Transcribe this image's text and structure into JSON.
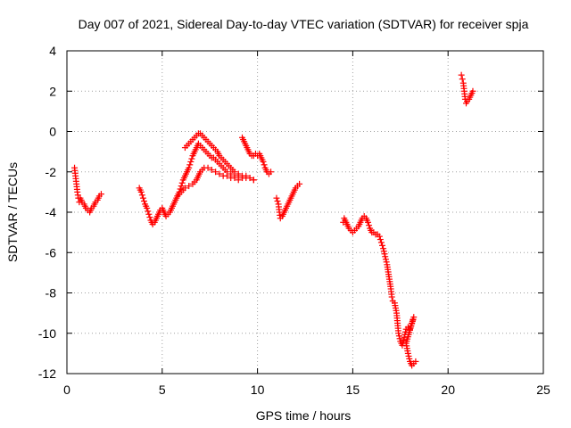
{
  "chart_data": {
    "type": "scatter",
    "title": "Day 007 of 2021, Sidereal Day-to-day VTEC variation (SDTVAR) for receiver spja",
    "xlabel": "GPS time / hours",
    "ylabel": "SDTVAR / TECUs",
    "xlim": [
      0,
      25
    ],
    "ylim": [
      -12,
      4
    ],
    "xticks": [
      "0",
      "5",
      "10",
      "15",
      "20",
      "25"
    ],
    "yticks": [
      "4",
      "2",
      "0",
      "-2",
      "-4",
      "-6",
      "-8",
      "-10",
      "-12"
    ],
    "grid": true,
    "marker": "+",
    "color": "#ff0000",
    "segments": [
      [
        [
          0.4,
          -1.8
        ],
        [
          0.45,
          -2.2
        ],
        [
          0.5,
          -2.6
        ],
        [
          0.55,
          -3.0
        ],
        [
          0.6,
          -3.3
        ],
        [
          0.65,
          -3.5
        ],
        [
          0.7,
          -3.3
        ],
        [
          0.8,
          -3.5
        ],
        [
          0.9,
          -3.6
        ],
        [
          1.0,
          -3.8
        ],
        [
          1.1,
          -3.9
        ],
        [
          1.2,
          -4.0
        ],
        [
          1.3,
          -3.8
        ],
        [
          1.4,
          -3.7
        ],
        [
          1.5,
          -3.5
        ],
        [
          1.6,
          -3.4
        ],
        [
          1.7,
          -3.2
        ],
        [
          1.8,
          -3.1
        ]
      ],
      [
        [
          3.8,
          -2.8
        ],
        [
          3.9,
          -3.0
        ],
        [
          4.0,
          -3.3
        ],
        [
          4.1,
          -3.6
        ],
        [
          4.2,
          -3.8
        ],
        [
          4.3,
          -4.1
        ],
        [
          4.4,
          -4.4
        ],
        [
          4.5,
          -4.6
        ],
        [
          4.6,
          -4.5
        ],
        [
          4.7,
          -4.3
        ],
        [
          4.8,
          -4.1
        ],
        [
          4.9,
          -3.9
        ],
        [
          5.0,
          -3.8
        ],
        [
          5.1,
          -4.0
        ],
        [
          5.2,
          -4.2
        ],
        [
          5.3,
          -4.1
        ],
        [
          5.4,
          -4.0
        ],
        [
          5.5,
          -3.8
        ],
        [
          5.6,
          -3.6
        ],
        [
          5.7,
          -3.4
        ],
        [
          5.8,
          -3.2
        ],
        [
          5.9,
          -3.0
        ],
        [
          6.0,
          -2.7
        ],
        [
          6.1,
          -2.4
        ],
        [
          6.2,
          -2.2
        ],
        [
          6.3,
          -2.0
        ],
        [
          6.4,
          -1.8
        ],
        [
          6.5,
          -1.5
        ],
        [
          6.6,
          -1.2
        ],
        [
          6.7,
          -1.0
        ],
        [
          6.8,
          -0.8
        ],
        [
          6.9,
          -0.6
        ],
        [
          7.0,
          -0.7
        ],
        [
          7.1,
          -0.8
        ],
        [
          7.2,
          -0.9
        ],
        [
          7.3,
          -1.0
        ],
        [
          7.4,
          -1.1
        ],
        [
          7.5,
          -1.2
        ],
        [
          7.6,
          -1.3
        ],
        [
          7.7,
          -1.3
        ],
        [
          7.8,
          -1.4
        ],
        [
          7.9,
          -1.5
        ],
        [
          8.0,
          -1.6
        ],
        [
          8.2,
          -1.8
        ],
        [
          8.4,
          -2.0
        ],
        [
          8.6,
          -2.1
        ],
        [
          8.8,
          -2.2
        ],
        [
          9.0,
          -2.2
        ],
        [
          9.2,
          -2.3
        ],
        [
          9.4,
          -2.3
        ],
        [
          9.6,
          -2.3
        ],
        [
          9.8,
          -2.4
        ]
      ],
      [
        [
          5.8,
          -3.2
        ],
        [
          6.0,
          -3.0
        ],
        [
          6.2,
          -2.8
        ],
        [
          6.4,
          -2.7
        ],
        [
          6.6,
          -2.6
        ],
        [
          6.8,
          -2.4
        ],
        [
          7.0,
          -2.0
        ],
        [
          7.2,
          -1.8
        ],
        [
          7.4,
          -1.8
        ],
        [
          7.6,
          -1.9
        ],
        [
          7.8,
          -2.0
        ],
        [
          8.0,
          -2.1
        ],
        [
          8.2,
          -2.2
        ],
        [
          8.4,
          -2.2
        ],
        [
          8.6,
          -2.3
        ],
        [
          8.8,
          -2.3
        ],
        [
          9.0,
          -2.4
        ],
        [
          9.2,
          -2.3
        ]
      ],
      [
        [
          6.2,
          -0.8
        ],
        [
          6.3,
          -0.7
        ],
        [
          6.4,
          -0.6
        ],
        [
          6.5,
          -0.5
        ],
        [
          6.6,
          -0.4
        ],
        [
          6.7,
          -0.3
        ],
        [
          6.8,
          -0.2
        ],
        [
          6.9,
          -0.1
        ],
        [
          7.0,
          -0.1
        ],
        [
          7.1,
          -0.2
        ],
        [
          7.2,
          -0.3
        ],
        [
          7.3,
          -0.4
        ],
        [
          7.4,
          -0.5
        ],
        [
          7.5,
          -0.6
        ],
        [
          7.6,
          -0.7
        ],
        [
          7.7,
          -0.8
        ],
        [
          7.8,
          -0.9
        ],
        [
          7.9,
          -1.0
        ],
        [
          8.0,
          -1.2
        ],
        [
          8.2,
          -1.4
        ],
        [
          8.4,
          -1.6
        ],
        [
          8.6,
          -1.8
        ],
        [
          8.8,
          -2.0
        ],
        [
          9.0,
          -2.1
        ],
        [
          9.2,
          -2.2
        ],
        [
          9.4,
          -2.2
        ],
        [
          9.6,
          -2.3
        ],
        [
          9.8,
          -2.4
        ]
      ],
      [
        [
          9.2,
          -0.3
        ],
        [
          9.3,
          -0.5
        ],
        [
          9.4,
          -0.7
        ],
        [
          9.5,
          -0.9
        ],
        [
          9.6,
          -1.1
        ],
        [
          9.7,
          -1.2
        ],
        [
          9.8,
          -1.2
        ],
        [
          9.9,
          -1.1
        ],
        [
          10.0,
          -1.2
        ],
        [
          10.1,
          -1.1
        ],
        [
          10.2,
          -1.3
        ],
        [
          10.3,
          -1.5
        ],
        [
          10.4,
          -1.8
        ],
        [
          10.5,
          -2.0
        ],
        [
          10.6,
          -2.1
        ],
        [
          10.7,
          -2.0
        ]
      ],
      [
        [
          11.0,
          -3.3
        ],
        [
          11.1,
          -3.6
        ],
        [
          11.15,
          -4.0
        ],
        [
          11.2,
          -4.3
        ],
        [
          11.3,
          -4.2
        ],
        [
          11.4,
          -4.0
        ],
        [
          11.5,
          -3.8
        ],
        [
          11.6,
          -3.6
        ],
        [
          11.7,
          -3.4
        ],
        [
          11.8,
          -3.2
        ],
        [
          11.9,
          -3.0
        ],
        [
          12.0,
          -2.8
        ],
        [
          12.1,
          -2.7
        ],
        [
          12.2,
          -2.6
        ]
      ],
      [
        [
          14.5,
          -4.5
        ],
        [
          14.55,
          -4.3
        ],
        [
          14.6,
          -4.4
        ],
        [
          14.7,
          -4.6
        ],
        [
          14.8,
          -4.8
        ],
        [
          14.9,
          -4.9
        ],
        [
          15.0,
          -5.0
        ],
        [
          15.1,
          -4.9
        ],
        [
          15.2,
          -4.8
        ],
        [
          15.3,
          -4.7
        ],
        [
          15.4,
          -4.5
        ],
        [
          15.5,
          -4.3
        ],
        [
          15.6,
          -4.2
        ],
        [
          15.7,
          -4.3
        ],
        [
          15.8,
          -4.5
        ],
        [
          15.9,
          -4.8
        ],
        [
          16.0,
          -5.0
        ],
        [
          16.1,
          -5.0
        ],
        [
          16.2,
          -5.1
        ],
        [
          16.3,
          -5.1
        ],
        [
          16.4,
          -5.2
        ],
        [
          16.5,
          -5.5
        ],
        [
          16.6,
          -5.8
        ],
        [
          16.7,
          -6.2
        ],
        [
          16.8,
          -6.6
        ],
        [
          16.9,
          -7.2
        ],
        [
          17.0,
          -7.8
        ],
        [
          17.05,
          -8.2
        ],
        [
          17.1,
          -8.4
        ],
        [
          17.2,
          -8.5
        ],
        [
          17.3,
          -9.0
        ],
        [
          17.35,
          -9.5
        ],
        [
          17.4,
          -10.0
        ],
        [
          17.5,
          -10.4
        ],
        [
          17.6,
          -10.6
        ],
        [
          17.7,
          -10.2
        ],
        [
          17.8,
          -9.8
        ],
        [
          17.9,
          -9.7
        ],
        [
          18.0,
          -9.8
        ],
        [
          18.1,
          -9.5
        ],
        [
          18.2,
          -9.2
        ],
        [
          17.8,
          -10.5
        ],
        [
          17.9,
          -11.0
        ],
        [
          18.0,
          -11.4
        ],
        [
          18.1,
          -11.6
        ],
        [
          18.2,
          -11.5
        ],
        [
          18.3,
          -11.4
        ]
      ],
      [
        [
          20.7,
          2.8
        ],
        [
          20.75,
          2.6
        ],
        [
          20.8,
          2.4
        ],
        [
          20.85,
          2.0
        ],
        [
          20.9,
          1.6
        ],
        [
          20.95,
          1.4
        ],
        [
          21.0,
          1.5
        ],
        [
          21.1,
          1.6
        ],
        [
          21.2,
          1.8
        ],
        [
          21.3,
          2.0
        ]
      ]
    ]
  }
}
